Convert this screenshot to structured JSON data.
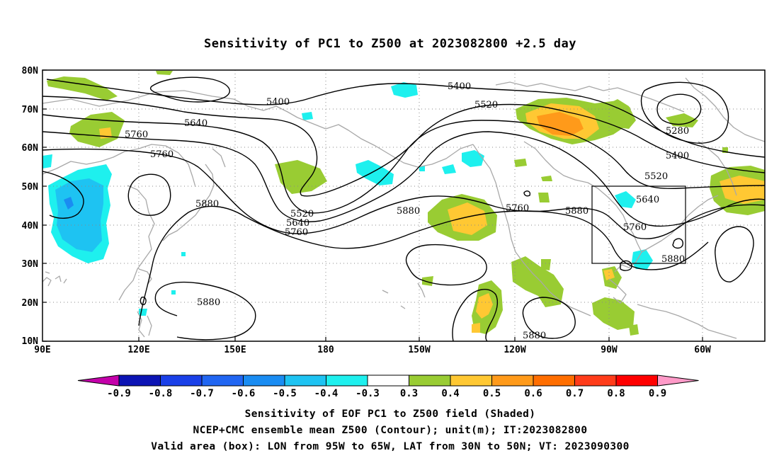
{
  "title": "Sensitivity of PC1 to Z500 at 2023082800 +2.5 day",
  "lat_labels": [
    "80N",
    "70N",
    "60N",
    "50N",
    "40N",
    "30N",
    "20N",
    "10N"
  ],
  "lon_labels": [
    "90E",
    "120E",
    "150E",
    "180",
    "150W",
    "120W",
    "90W",
    "60W"
  ],
  "contour_labels": [
    "5400",
    "5400",
    "5520",
    "5640",
    "5760",
    "5760",
    "5880",
    "5520",
    "5640",
    "5760",
    "5880",
    "5760",
    "5880",
    "5280",
    "5400",
    "5520",
    "5640",
    "5760",
    "5880",
    "5880",
    "5880"
  ],
  "colorbar": {
    "labels": [
      "-0.9",
      "-0.8",
      "-0.7",
      "-0.6",
      "-0.5",
      "-0.4",
      "-0.3",
      "0.3",
      "0.4",
      "0.5",
      "0.6",
      "0.7",
      "0.8",
      "0.9"
    ],
    "colors": [
      "#c400aa",
      "#0c14b4",
      "#1a40e8",
      "#2166f2",
      "#1a8cf2",
      "#1ec3f2",
      "#1ef0ee",
      "#ffffff",
      "#99cc33",
      "#ffc833",
      "#ff9a1a",
      "#ff6e00",
      "#ff3c1a",
      "#ff0000",
      "#ff9ac8"
    ]
  },
  "valid_box": {
    "lon_west": -95,
    "lon_east": -65,
    "lat_south": 30,
    "lat_north": 50
  },
  "caption": {
    "line1": "Sensitivity of EOF PC1 to Z500 field (Shaded)",
    "line2": "NCEP+CMC ensemble mean Z500 (Contour); unit(m); IT:2023082800",
    "line3": "Valid area (box): LON from 95W to 65W, LAT from 30N to 50N; VT: 2023090300"
  },
  "colors": {
    "coast": "#a8a8a8",
    "contour": "#000000",
    "grid": "#888888"
  }
}
